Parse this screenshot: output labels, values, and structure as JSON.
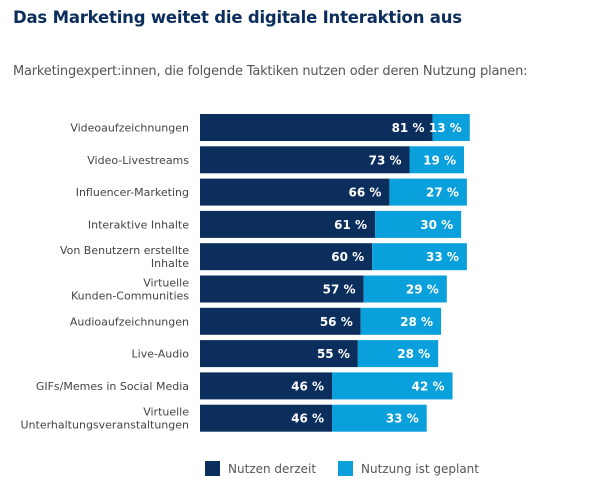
{
  "title": "Das Marketing weitet die digitale Interaktion aus",
  "subtitle": "Marketingexpert:innen, die folgende Taktiken nutzen oder deren Nutzung planen:",
  "colors": {
    "current": "#0c2e5c",
    "planned": "#0aa0dc"
  },
  "chart_data": {
    "type": "bar",
    "orientation": "horizontal",
    "stacked": true,
    "categories": [
      [
        "Videoaufzeichnungen"
      ],
      [
        "Video-Livestreams"
      ],
      [
        "Influencer-Marketing"
      ],
      [
        "Interaktive Inhalte"
      ],
      [
        "Von Benutzern erstellte",
        "Inhalte"
      ],
      [
        "Virtuelle",
        "Kunden-Communities"
      ],
      [
        "Audioaufzeichnungen"
      ],
      [
        "Live-Audio"
      ],
      [
        "GIFs/Memes in Social Media"
      ],
      [
        "Virtuelle",
        "Unterhaltungsveranstaltungen"
      ]
    ],
    "series": [
      {
        "name": "Nutzen derzeit",
        "values": [
          81,
          73,
          66,
          61,
          60,
          57,
          56,
          55,
          46,
          46
        ]
      },
      {
        "name": "Nutzung ist geplant",
        "values": [
          13,
          19,
          27,
          30,
          33,
          29,
          28,
          28,
          42,
          33
        ]
      }
    ],
    "value_suffix": " %",
    "legend": "bottom"
  }
}
